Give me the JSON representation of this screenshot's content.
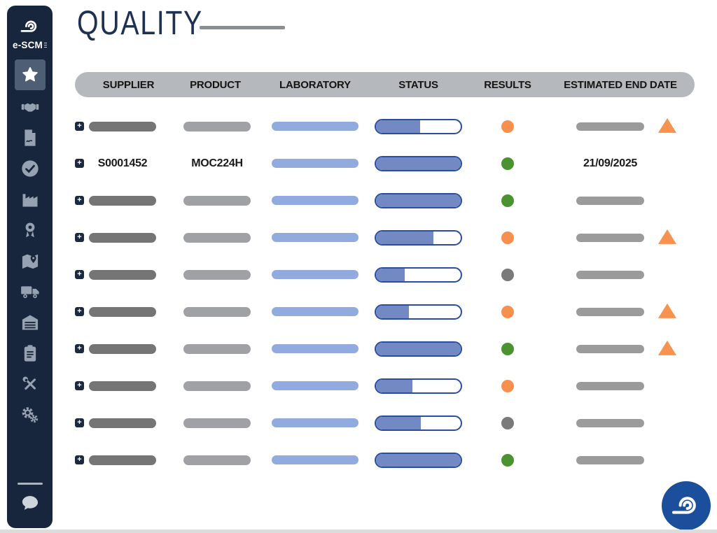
{
  "brand": {
    "name": "e-SCM"
  },
  "page": {
    "title": "QUALITY"
  },
  "sidebar": {
    "icons": [
      "star",
      "handshake",
      "document-signature",
      "check-circle",
      "factory",
      "award-ribbon",
      "map-location",
      "truck",
      "warehouse",
      "clipboard",
      "tools",
      "settings-gears"
    ],
    "active_icon": "star",
    "footer_icon": "chat"
  },
  "table": {
    "columns": [
      "SUPPLIER",
      "PRODUCT",
      "LABORATORY",
      "STATUS",
      "RESULTS",
      "ESTIMATED END DATE"
    ],
    "rows": [
      {
        "supplier": null,
        "product": null,
        "date": null,
        "status_percent": 52,
        "result": "orange",
        "alert": true
      },
      {
        "supplier": "S0001452",
        "product": "MOC224H",
        "date": "21/09/2025",
        "status_percent": 100,
        "result": "green",
        "alert": false
      },
      {
        "supplier": null,
        "product": null,
        "date": null,
        "status_percent": 100,
        "result": "green",
        "alert": false
      },
      {
        "supplier": null,
        "product": null,
        "date": null,
        "status_percent": 68,
        "result": "orange",
        "alert": true
      },
      {
        "supplier": null,
        "product": null,
        "date": null,
        "status_percent": 34,
        "result": "gray",
        "alert": false
      },
      {
        "supplier": null,
        "product": null,
        "date": null,
        "status_percent": 39,
        "result": "orange",
        "alert": true
      },
      {
        "supplier": null,
        "product": null,
        "date": null,
        "status_percent": 100,
        "result": "green",
        "alert": true
      },
      {
        "supplier": null,
        "product": null,
        "date": null,
        "status_percent": 43,
        "result": "orange",
        "alert": false
      },
      {
        "supplier": null,
        "product": null,
        "date": null,
        "status_percent": 53,
        "result": "gray",
        "alert": false
      },
      {
        "supplier": null,
        "product": null,
        "date": null,
        "status_percent": 100,
        "result": "green",
        "alert": false
      }
    ]
  },
  "colors": {
    "sidebar_bg": "#17263c",
    "active_tile": "#4e5e74",
    "icon": "#96a2b2",
    "header_bg": "#b5b9bd",
    "title": "#1f3150",
    "bar_dark": "#757575",
    "bar_mid": "#9fa1a4",
    "bar_blue": "#92abde",
    "bar_date": "#9b9b9b",
    "status_border": "#2b4d9e",
    "status_fill": "#7289c3",
    "dot_orange": "#f78f4d",
    "dot_green": "#4b9330",
    "dot_gray": "#7a7a7a",
    "alert_triangle": "#f7934e",
    "logo_blue": "#1c4f9b"
  }
}
